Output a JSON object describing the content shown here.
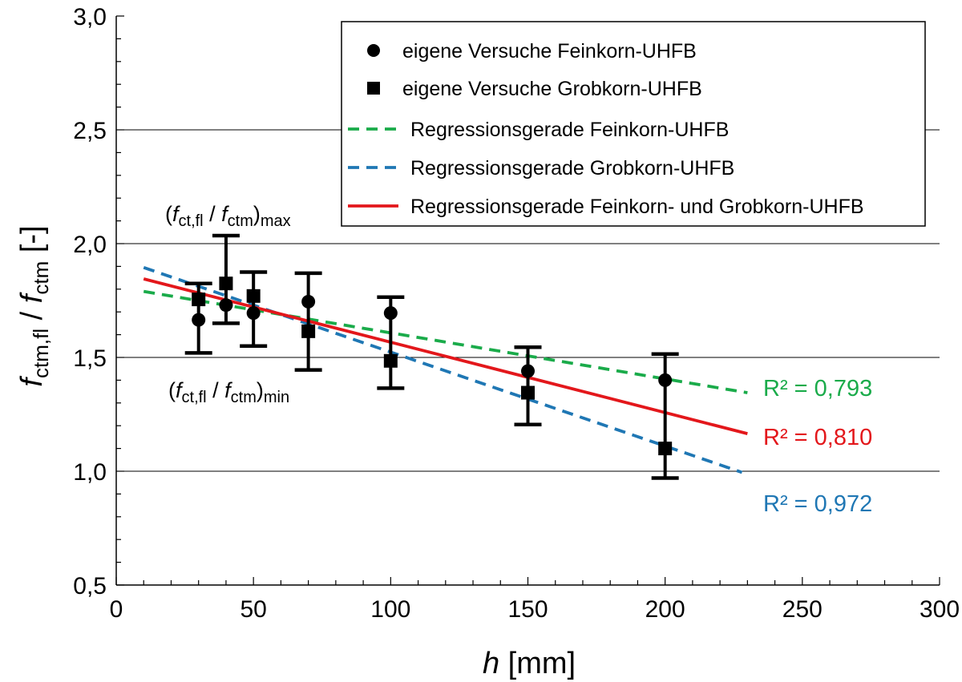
{
  "chart_data": {
    "type": "scatter",
    "xlabel": {
      "italic": "h",
      "rest": " [mm]"
    },
    "ylabel": {
      "f1": "f",
      "s1": "ctm,fl",
      "sep": " / ",
      "f2": "f",
      "s2": "ctm",
      "rest": " [-]"
    },
    "xlim": [
      0,
      300
    ],
    "ylim": [
      0.5,
      3.0
    ],
    "x_ticks": [
      0,
      50,
      100,
      150,
      200,
      250,
      300
    ],
    "x_tick_labels": [
      "0",
      "50",
      "100",
      "150",
      "200",
      "250",
      "300"
    ],
    "y_ticks": [
      0.5,
      1.0,
      1.5,
      2.0,
      2.5,
      3.0
    ],
    "y_tick_labels": [
      "0,5",
      "1,0",
      "1,5",
      "2,0",
      "2,5",
      "3,0"
    ],
    "x_minor_step": 10,
    "y_minor_step": 0.1,
    "grid": "horizontal major",
    "legend_placement": "top-right",
    "series": [
      {
        "name": "eigene Versuche Feinkorn-UHFB",
        "kind": "points",
        "marker": "circle",
        "color": "#000000",
        "x": [
          30,
          40,
          50,
          70,
          100,
          150,
          200
        ],
        "y": [
          1.665,
          1.73,
          1.695,
          1.745,
          1.695,
          1.44,
          1.4
        ]
      },
      {
        "name": "eigene Versuche Grobkorn-UHFB",
        "kind": "points",
        "marker": "square",
        "color": "#000000",
        "x": [
          30,
          40,
          50,
          70,
          100,
          150,
          200
        ],
        "y": [
          1.755,
          1.825,
          1.77,
          1.615,
          1.485,
          1.345,
          1.1
        ]
      },
      {
        "name": "Regressionsgerade Feinkorn-UHFB",
        "kind": "line",
        "dash": "dashed",
        "color": "#1aab4a",
        "x": [
          10,
          230
        ],
        "y": [
          1.79,
          1.345
        ],
        "r2_label": "R² = 0,793"
      },
      {
        "name": "Regressionsgerade Grobkorn-UHFB",
        "kind": "line",
        "dash": "dashed",
        "color": "#1f77b4",
        "x": [
          10,
          228
        ],
        "y": [
          1.895,
          0.995
        ],
        "r2_label": "R² = 0,972"
      },
      {
        "name": "Regressionsgerade Feinkorn- und Grobkorn-UHFB",
        "kind": "line",
        "dash": "solid",
        "color": "#e3171b",
        "x": [
          10,
          230
        ],
        "y": [
          1.845,
          1.165
        ],
        "r2_label": "R² = 0,810"
      }
    ],
    "error_bars": [
      {
        "x": 30,
        "min": 1.52,
        "max": 1.825
      },
      {
        "x": 40,
        "min": 1.65,
        "max": 2.035
      },
      {
        "x": 50,
        "min": 1.55,
        "max": 1.875
      },
      {
        "x": 70,
        "min": 1.445,
        "max": 1.87
      },
      {
        "x": 100,
        "min": 1.365,
        "max": 1.765
      },
      {
        "x": 150,
        "min": 1.205,
        "max": 1.545
      },
      {
        "x": 200,
        "min": 0.97,
        "max": 1.515
      }
    ],
    "annotations": {
      "max": {
        "open": "(",
        "f1": "f",
        "s1": "ct,fl",
        "sep": " / ",
        "f2": "f",
        "s2": "ctm",
        "close": ")",
        "sub": "max"
      },
      "min": {
        "open": "(",
        "f1": "f",
        "s1": "ct,fl",
        "sep": " / ",
        "f2": "f",
        "s2": "ctm",
        "close": ")",
        "sub": "min"
      }
    }
  }
}
